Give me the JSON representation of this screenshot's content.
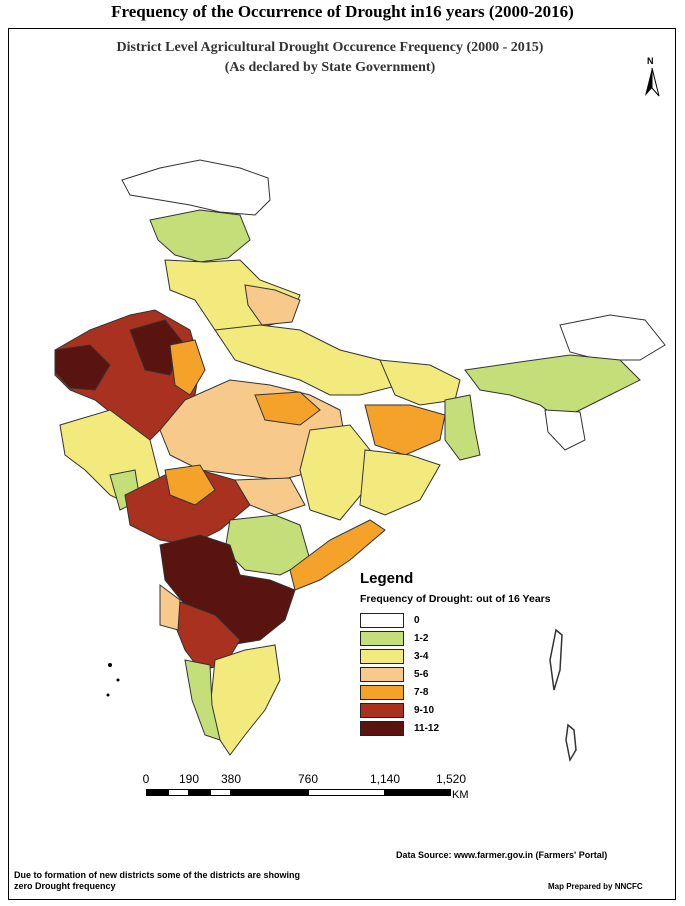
{
  "page_title": "Frequency of the Occurrence of Drought in16 years (2000-2016)",
  "map": {
    "title_line1": "District Level Agricultural Drought Occurence Frequency (2000 - 2015)",
    "title_line2": "(As declared by State Government)",
    "north_label": "N"
  },
  "legend": {
    "title": "Legend",
    "subtitle": "Frequency of Drought: out of 16 Years",
    "items": [
      {
        "label": "0",
        "color": "#ffffff"
      },
      {
        "label": "1-2",
        "color": "#c4df7a"
      },
      {
        "label": "3-4",
        "color": "#f2ea7d"
      },
      {
        "label": "5-6",
        "color": "#f7c98a"
      },
      {
        "label": "7-8",
        "color": "#f4a22a"
      },
      {
        "label": "9-10",
        "color": "#a8321f"
      },
      {
        "label": "11-12",
        "color": "#5a1410"
      }
    ]
  },
  "scale": {
    "ticks": [
      "0",
      "190",
      "380",
      "760",
      "1,140",
      "1,520"
    ],
    "unit": "KM"
  },
  "source": "Data Source: www.farmer.gov.in (Farmers' Portal)",
  "note": "Due to formation of new districts some of the districts are showing zero Drought frequency",
  "prepared_by": "Map Prepared by NNCFC"
}
